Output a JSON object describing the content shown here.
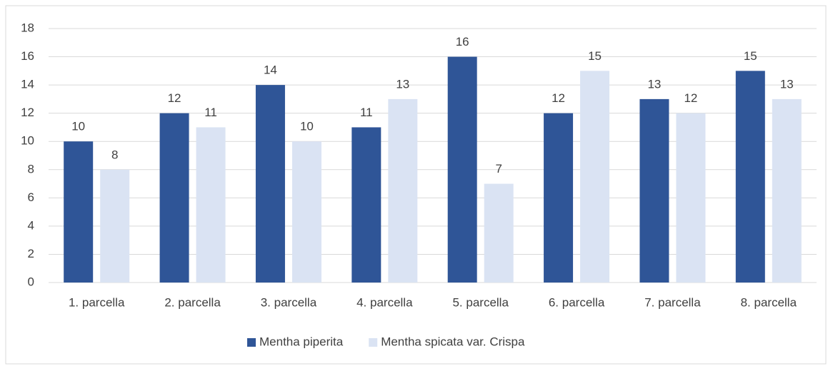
{
  "chart_data": {
    "type": "bar",
    "categories": [
      "1. parcella",
      "2. parcella",
      "3. parcella",
      "4. parcella",
      "5. parcella",
      "6. parcella",
      "7. parcella",
      "8. parcella"
    ],
    "series": [
      {
        "name": "Mentha piperita",
        "color": "#2f5597",
        "values": [
          10,
          12,
          14,
          11,
          16,
          12,
          13,
          15
        ]
      },
      {
        "name": "Mentha spicata var. Crispa",
        "color": "#dae3f3",
        "values": [
          8,
          11,
          10,
          13,
          7,
          15,
          12,
          13
        ]
      }
    ],
    "ylim": [
      0,
      18
    ],
    "yticks": [
      0,
      2,
      4,
      6,
      8,
      10,
      12,
      14,
      16,
      18
    ],
    "grid": true,
    "legend": "bottom"
  }
}
